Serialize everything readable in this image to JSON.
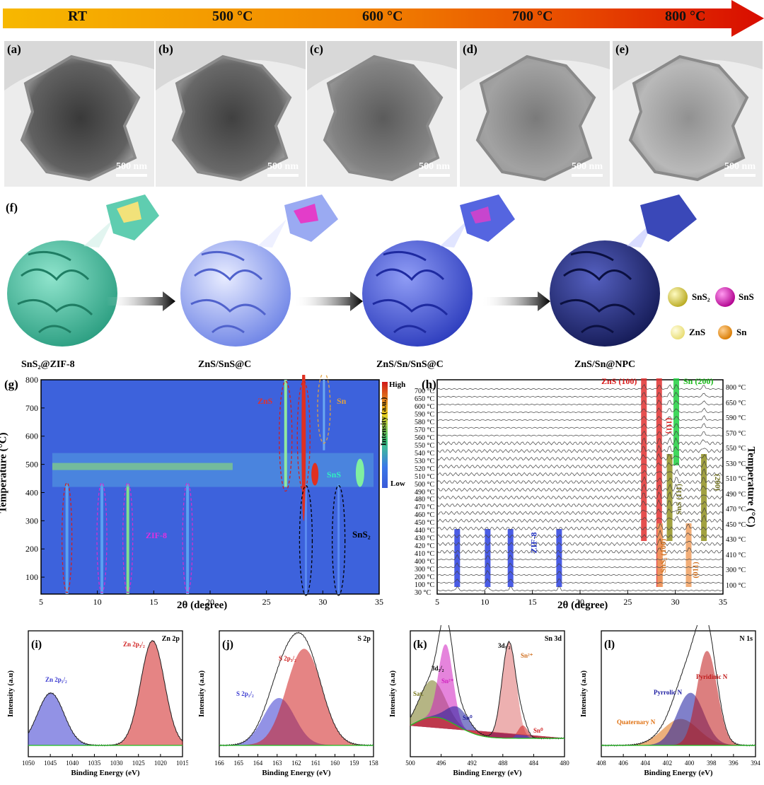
{
  "temperature_bar": {
    "labels": [
      "RT",
      "500 °C",
      "600 °C",
      "700 °C",
      "800 °C"
    ],
    "colors": [
      "#f7b500",
      "#f08a00",
      "#e85a00",
      "#e02d00",
      "#d81000"
    ]
  },
  "tem_panels": [
    {
      "label": "(a)",
      "scale": "500 nm",
      "tone": 0.1
    },
    {
      "label": "(b)",
      "scale": "500 nm",
      "tone": 0.14
    },
    {
      "label": "(c)",
      "scale": "500 nm",
      "tone": 0.3
    },
    {
      "label": "(d)",
      "scale": "500 nm",
      "tone": 0.48
    },
    {
      "label": "(e)",
      "scale": "500 nm",
      "tone": 0.62
    }
  ],
  "schematic": {
    "label": "(f)",
    "stages": [
      {
        "caption": "SnS₂@ZIF-8",
        "color": "#55c6a6"
      },
      {
        "caption": "ZnS/SnS@C",
        "color": "#8da2ee"
      },
      {
        "caption": "ZnS/Sn/SnS@C",
        "color": "#4a5bd6"
      },
      {
        "caption": "ZnS/Sn@NPC",
        "color": "#2c3583"
      }
    ],
    "legend": [
      {
        "name": "SnS₂",
        "color": "#d9cf4a"
      },
      {
        "name": "SnS",
        "color": "#e51fc4"
      },
      {
        "name": "ZnS",
        "color": "#f3ea8f"
      },
      {
        "name": "Sn",
        "color": "#f0a030"
      }
    ]
  },
  "panel_g": {
    "label": "(g)",
    "xlabel": "2θ (degree)",
    "ylabel": "Temperature (°C)",
    "colorbar_label": "Intensity (a.u.)",
    "colorbar_high": "High",
    "colorbar_low": "Low",
    "xticks": [
      "5",
      "10",
      "15",
      "20",
      "25",
      "30",
      "35"
    ],
    "yticks": [
      "100",
      "200",
      "300",
      "400",
      "500",
      "600",
      "700",
      "800"
    ],
    "annotations": {
      "zns": "ZnS",
      "sn": "Sn",
      "sns": "SnS",
      "zif8": "ZIF-8",
      "sns2": "SnS₂"
    }
  },
  "panel_h": {
    "label": "(h)",
    "xlabel": "2θ (degree)",
    "ylabel": "Temperature (°C)",
    "xticks": [
      "5",
      "10",
      "15",
      "20",
      "25",
      "30",
      "35"
    ],
    "left_temps": [
      "700 °C",
      "650 °C",
      "600 °C",
      "590 °C",
      "580 °C",
      "570 °C",
      "560 °C",
      "550 °C",
      "540 °C",
      "530 °C",
      "520 °C",
      "510 °C",
      "500 °C",
      "490 °C",
      "480 °C",
      "470 °C",
      "460 °C",
      "450 °C",
      "440 °C",
      "430 °C",
      "420 °C",
      "410 °C",
      "400 °C",
      "300 °C",
      "200 °C",
      "100 °C",
      "30 °C"
    ],
    "right_temps": [
      "800 °C",
      "650 °C",
      "590 °C",
      "570 °C",
      "550 °C",
      "530 °C",
      "510 °C",
      "490 °C",
      "470 °C",
      "450 °C",
      "430 °C",
      "410 °C",
      "300 °C",
      "100 °C"
    ],
    "annotations": {
      "zns100": "ZnS (100)",
      "sn200": "Sn (200)",
      "zns111": "(111)",
      "sns111": "SnS (111)",
      "sns200": "(200)",
      "zif8": "ZIF-8",
      "sns2100": "SnS₂ (100)",
      "sns2011": "(011)"
    }
  },
  "xps": {
    "ylabel": "Intensity (a.u)",
    "xlabel": "Binding Energy (eV)",
    "panels": [
      {
        "label": "(i)",
        "title": "Zn 2p",
        "xticks": [
          "1050",
          "1045",
          "1040",
          "1035",
          "1030",
          "1025",
          "1020",
          "1015"
        ],
        "peaks": [
          {
            "name": "Zn 2p₁/₂",
            "color": "#3a3ad0"
          },
          {
            "name": "Zn 2p₃/₂",
            "color": "#d02020"
          }
        ]
      },
      {
        "label": "(j)",
        "title": "S 2p",
        "xticks": [
          "166",
          "165",
          "164",
          "163",
          "162",
          "161",
          "160",
          "159",
          "158"
        ],
        "peaks": [
          {
            "name": "S 2p₁/₂",
            "color": "#3a3ad0"
          },
          {
            "name": "S 2p₃/₂",
            "color": "#d02020"
          }
        ]
      },
      {
        "label": "(k)",
        "title": "Sn 3d",
        "xticks": [
          "500",
          "496",
          "492",
          "488",
          "484",
          "480"
        ],
        "peaks": [
          {
            "name": "Sat.",
            "color": "#7a7a20"
          },
          {
            "name": "3d₃/₂",
            "color": "#000000"
          },
          {
            "name": "Sn²⁺",
            "color": "#d020c0"
          },
          {
            "name": "Sn⁰",
            "color": "#2020a0"
          },
          {
            "name": "3d₅/₂",
            "color": "#000000"
          },
          {
            "name": "Sn²⁺",
            "color": "#d07020"
          },
          {
            "name": "Sn⁰",
            "color": "#d02020"
          }
        ]
      },
      {
        "label": "(l)",
        "title": "N 1s",
        "xticks": [
          "408",
          "406",
          "404",
          "402",
          "400",
          "398",
          "396",
          "394"
        ],
        "peaks": [
          {
            "name": "Pyrrolic N",
            "color": "#1a1aa0"
          },
          {
            "name": "Pyridinic N",
            "color": "#c01818"
          },
          {
            "name": "Quaternary N",
            "color": "#e07010"
          }
        ]
      }
    ]
  }
}
